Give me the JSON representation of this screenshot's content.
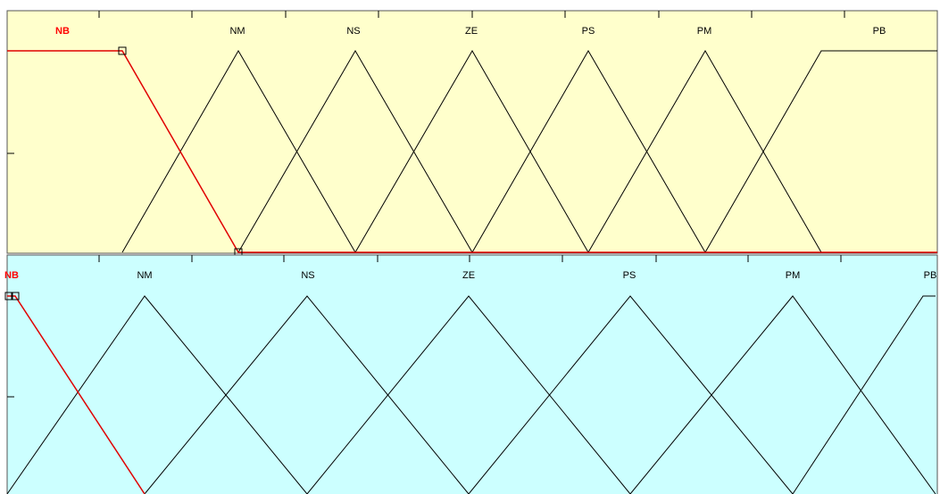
{
  "panels": [
    {
      "labels": [
        "NB",
        "NM",
        "NS",
        "ZE",
        "PS",
        "PM",
        "PB"
      ]
    },
    {
      "labels": [
        "NB",
        "NM",
        "NS",
        "ZE",
        "PS",
        "PM",
        "PB"
      ]
    }
  ]
}
